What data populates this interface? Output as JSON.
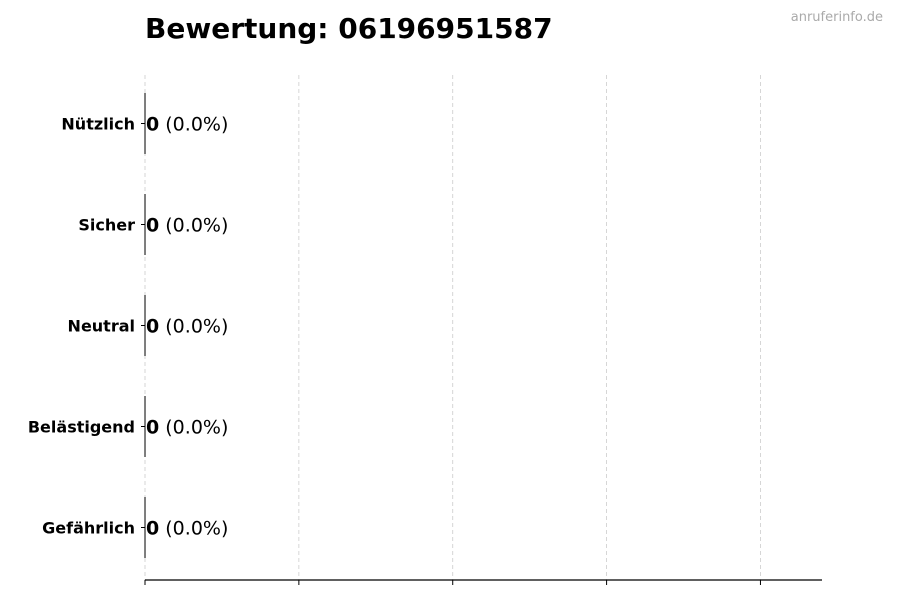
{
  "title": "Bewertung: 06196951587",
  "watermark": "anruferinfo.de",
  "chart_data": {
    "type": "bar",
    "orientation": "horizontal",
    "title": "Bewertung: 06196951587",
    "categories": [
      "Nützlich",
      "Sicher",
      "Neutral",
      "Belästigend",
      "Gefährlich"
    ],
    "values": [
      0,
      0,
      0,
      0,
      0
    ],
    "labels": [
      {
        "count": "0",
        "percent": "(0.0%)"
      },
      {
        "count": "0",
        "percent": "(0.0%)"
      },
      {
        "count": "0",
        "percent": "(0.0%)"
      },
      {
        "count": "0",
        "percent": "(0.0%)"
      },
      {
        "count": "0",
        "percent": "(0.0%)"
      }
    ],
    "xlim": [
      0,
      4.4
    ],
    "xticks": [
      0,
      1,
      2,
      3,
      4
    ],
    "xtick_labels_shown": false,
    "grid": "x, dashed",
    "colors": {
      "bar_edge": "#000000",
      "grid": "#cccccc"
    }
  }
}
